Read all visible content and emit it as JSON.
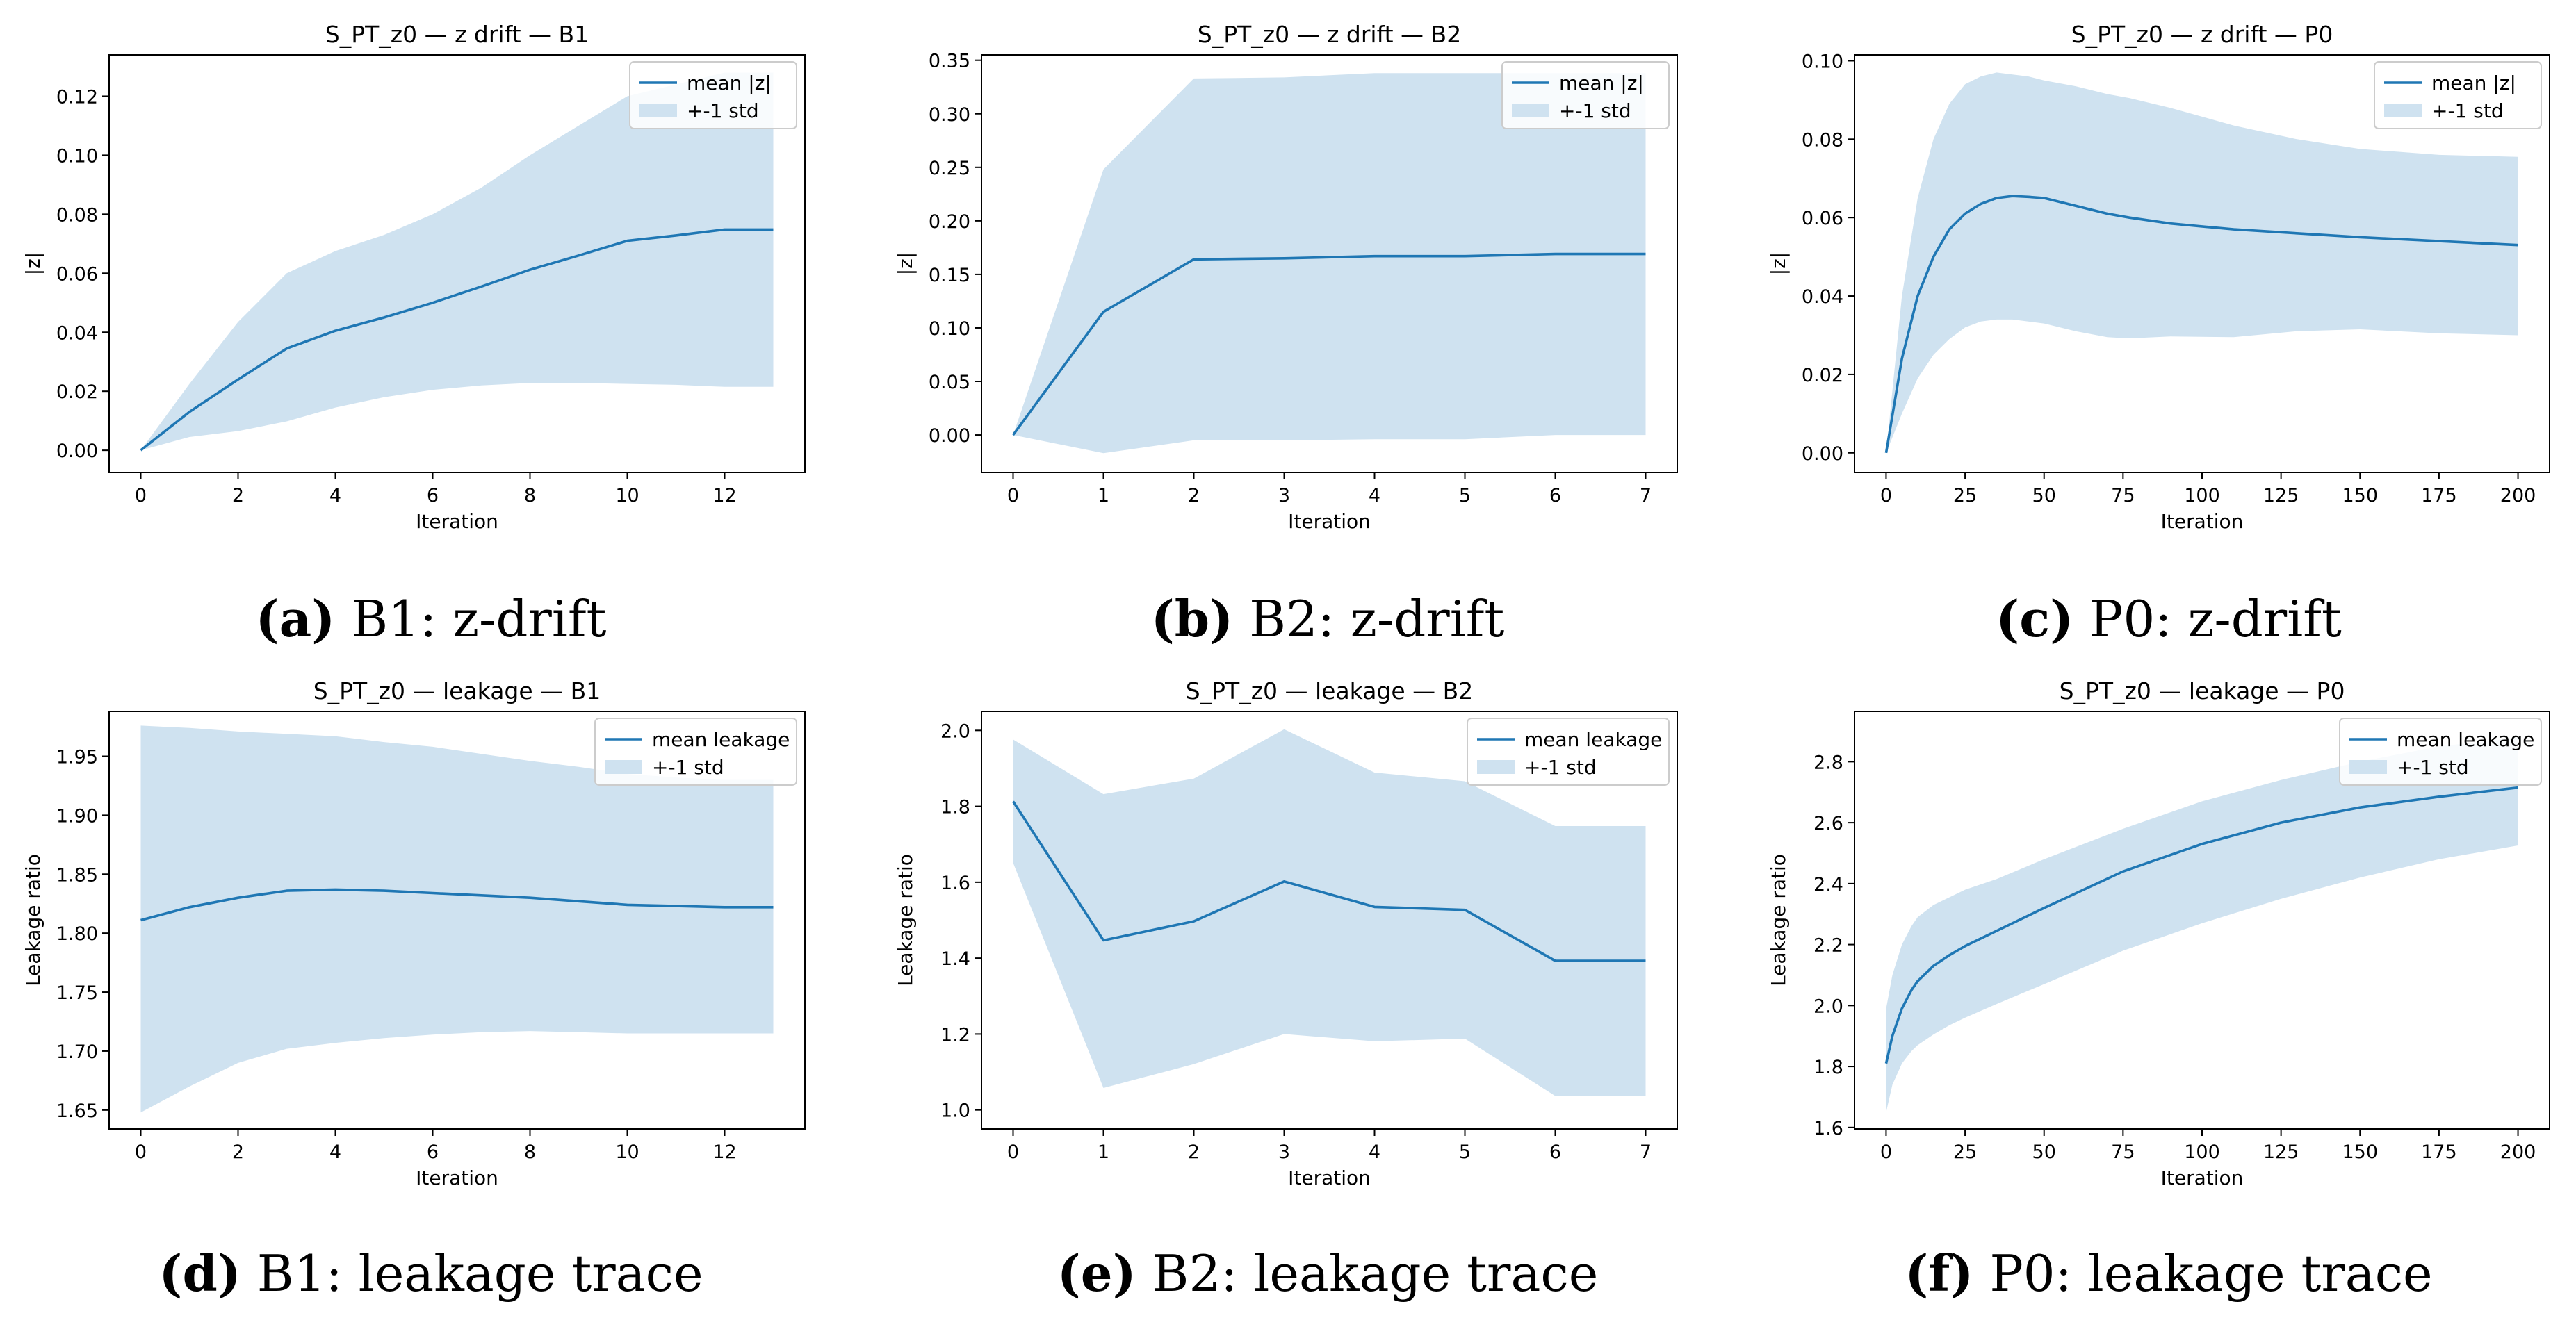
{
  "colors": {
    "line": "#1f77b4",
    "band": "#cfe2f0",
    "axis": "#000000"
  },
  "chart_data": [
    {
      "id": "a",
      "type": "line",
      "title": "S_PT_z0 — z drift — B1",
      "xlabel": "Iteration",
      "ylabel": "|z|",
      "xlim": [
        -0.65,
        13.65
      ],
      "ylim": [
        -0.0075,
        0.134
      ],
      "xticks": [
        0,
        2,
        4,
        6,
        8,
        10,
        12
      ],
      "yticks": [
        0.0,
        0.02,
        0.04,
        0.06,
        0.08,
        0.1,
        0.12
      ],
      "ytick_decimals": 2,
      "legend_position": "top-right",
      "series": [
        {
          "name": "mean |z|",
          "x": [
            0,
            1,
            2,
            3,
            4,
            5,
            6,
            7,
            8,
            9,
            10,
            11,
            12,
            13
          ],
          "y": [
            0.0,
            0.013,
            0.024,
            0.0345,
            0.0405,
            0.045,
            0.05,
            0.0555,
            0.0612,
            0.066,
            0.071,
            0.0728,
            0.0748,
            0.0748
          ]
        },
        {
          "name": "+-1 std",
          "x": [
            0,
            1,
            2,
            3,
            4,
            5,
            6,
            7,
            8,
            9,
            10,
            11,
            12,
            13
          ],
          "lower": [
            0.0,
            0.0045,
            0.0065,
            0.0098,
            0.0145,
            0.018,
            0.0205,
            0.022,
            0.0228,
            0.0228,
            0.0225,
            0.0222,
            0.0215,
            0.0215
          ],
          "upper": [
            0.0,
            0.0225,
            0.0435,
            0.06,
            0.0675,
            0.073,
            0.08,
            0.089,
            0.1,
            0.11,
            0.12,
            0.124,
            0.128,
            0.128
          ]
        }
      ]
    },
    {
      "id": "b",
      "type": "line",
      "title": "S_PT_z0 — z drift — B2",
      "xlabel": "Iteration",
      "ylabel": "|z|",
      "xlim": [
        -0.35,
        7.35
      ],
      "ylim": [
        -0.035,
        0.355
      ],
      "xticks": [
        0,
        1,
        2,
        3,
        4,
        5,
        6,
        7
      ],
      "yticks": [
        0.0,
        0.05,
        0.1,
        0.15,
        0.2,
        0.25,
        0.3,
        0.35
      ],
      "ytick_decimals": 2,
      "legend_position": "top-right",
      "series": [
        {
          "name": "mean |z|",
          "x": [
            0,
            1,
            2,
            3,
            4,
            5,
            6,
            7
          ],
          "y": [
            0.0,
            0.115,
            0.164,
            0.165,
            0.167,
            0.167,
            0.169,
            0.169
          ]
        },
        {
          "name": "+-1 std",
          "x": [
            0,
            1,
            2,
            3,
            4,
            5,
            6,
            7
          ],
          "lower": [
            0.0,
            -0.017,
            -0.005,
            -0.005,
            -0.004,
            -0.004,
            0.0,
            0.0
          ],
          "upper": [
            0.0,
            0.248,
            0.333,
            0.334,
            0.338,
            0.338,
            0.338,
            0.338
          ]
        }
      ]
    },
    {
      "id": "c",
      "type": "line",
      "title": "S_PT_z0 — z drift — P0",
      "xlabel": "Iteration",
      "ylabel": "|z|",
      "xlim": [
        -10,
        210
      ],
      "ylim": [
        -0.005,
        0.1015
      ],
      "xticks": [
        0,
        25,
        50,
        75,
        100,
        125,
        150,
        175,
        200
      ],
      "yticks": [
        0.0,
        0.02,
        0.04,
        0.06,
        0.08,
        0.1
      ],
      "ytick_decimals": 2,
      "legend_position": "top-right",
      "series": [
        {
          "name": "mean |z|",
          "x": [
            0,
            5,
            10,
            15,
            20,
            25,
            30,
            35,
            40,
            45,
            50,
            60,
            70,
            77,
            90,
            110,
            130,
            150,
            175,
            200
          ],
          "y": [
            0.0,
            0.024,
            0.04,
            0.05,
            0.057,
            0.061,
            0.0635,
            0.065,
            0.0655,
            0.0653,
            0.065,
            0.063,
            0.061,
            0.06,
            0.0585,
            0.057,
            0.056,
            0.055,
            0.054,
            0.053
          ]
        },
        {
          "name": "+-1 std",
          "x": [
            0,
            5,
            10,
            15,
            20,
            25,
            30,
            35,
            40,
            45,
            50,
            60,
            70,
            77,
            90,
            110,
            130,
            150,
            175,
            200
          ],
          "lower": [
            0.0,
            0.01,
            0.019,
            0.025,
            0.029,
            0.032,
            0.0335,
            0.034,
            0.034,
            0.0335,
            0.033,
            0.031,
            0.0295,
            0.0292,
            0.0297,
            0.0295,
            0.031,
            0.0315,
            0.0305,
            0.03
          ],
          "upper": [
            0.0,
            0.04,
            0.065,
            0.08,
            0.089,
            0.094,
            0.096,
            0.097,
            0.0965,
            0.096,
            0.095,
            0.0935,
            0.0915,
            0.0905,
            0.088,
            0.0835,
            0.08,
            0.0775,
            0.076,
            0.0755
          ]
        }
      ]
    },
    {
      "id": "d",
      "type": "line",
      "title": "S_PT_z0 — leakage — B1",
      "xlabel": "Iteration",
      "ylabel": "Leakage ratio",
      "xlim": [
        -0.65,
        13.65
      ],
      "ylim": [
        1.634,
        1.988
      ],
      "xticks": [
        0,
        2,
        4,
        6,
        8,
        10,
        12
      ],
      "yticks": [
        1.65,
        1.7,
        1.75,
        1.8,
        1.85,
        1.9,
        1.95
      ],
      "ytick_decimals": 2,
      "legend_position": "top-right",
      "series": [
        {
          "name": "mean leakage",
          "x": [
            0,
            1,
            2,
            3,
            4,
            5,
            6,
            7,
            8,
            9,
            10,
            11,
            12,
            13
          ],
          "y": [
            1.811,
            1.822,
            1.83,
            1.836,
            1.837,
            1.836,
            1.834,
            1.832,
            1.83,
            1.827,
            1.824,
            1.823,
            1.822,
            1.822
          ]
        },
        {
          "name": "+-1 std",
          "x": [
            0,
            1,
            2,
            3,
            4,
            5,
            6,
            7,
            8,
            9,
            10,
            11,
            12,
            13
          ],
          "lower": [
            1.648,
            1.67,
            1.69,
            1.702,
            1.707,
            1.711,
            1.714,
            1.716,
            1.717,
            1.716,
            1.715,
            1.715,
            1.715,
            1.715
          ],
          "upper": [
            1.976,
            1.974,
            1.971,
            1.969,
            1.967,
            1.962,
            1.958,
            1.952,
            1.946,
            1.941,
            1.935,
            1.932,
            1.93,
            1.93
          ]
        }
      ]
    },
    {
      "id": "e",
      "type": "line",
      "title": "S_PT_z0 — leakage — B2",
      "xlabel": "Iteration",
      "ylabel": "Leakage ratio",
      "xlim": [
        -0.35,
        7.35
      ],
      "ylim": [
        0.95,
        2.05
      ],
      "xticks": [
        0,
        1,
        2,
        3,
        4,
        5,
        6,
        7
      ],
      "yticks": [
        1.0,
        1.2,
        1.4,
        1.6,
        1.8,
        2.0
      ],
      "ytick_decimals": 1,
      "legend_position": "top-right",
      "series": [
        {
          "name": "mean leakage",
          "x": [
            0,
            1,
            2,
            3,
            4,
            5,
            6,
            7
          ],
          "y": [
            1.813,
            1.447,
            1.497,
            1.602,
            1.535,
            1.527,
            1.393,
            1.393
          ]
        },
        {
          "name": "+-1 std",
          "x": [
            0,
            1,
            2,
            3,
            4,
            5,
            6,
            7
          ],
          "lower": [
            1.651,
            1.058,
            1.121,
            1.2,
            1.181,
            1.188,
            1.037,
            1.037
          ],
          "upper": [
            1.976,
            1.832,
            1.873,
            2.003,
            1.889,
            1.866,
            1.748,
            1.748
          ]
        }
      ]
    },
    {
      "id": "f",
      "type": "line",
      "title": "S_PT_z0 — leakage — P0",
      "xlabel": "Iteration",
      "ylabel": "Leakage ratio",
      "xlim": [
        -10,
        210
      ],
      "ylim": [
        1.595,
        2.965
      ],
      "xticks": [
        0,
        25,
        50,
        75,
        100,
        125,
        150,
        175,
        200
      ],
      "yticks": [
        1.6,
        1.8,
        2.0,
        2.2,
        2.4,
        2.6,
        2.8
      ],
      "ytick_decimals": 1,
      "legend_position": "top-right",
      "series": [
        {
          "name": "mean leakage",
          "x": [
            0,
            2,
            5,
            8,
            10,
            15,
            20,
            25,
            35,
            50,
            75,
            100,
            125,
            150,
            175,
            200
          ],
          "y": [
            1.81,
            1.9,
            1.99,
            2.05,
            2.08,
            2.13,
            2.165,
            2.195,
            2.245,
            2.32,
            2.44,
            2.53,
            2.6,
            2.65,
            2.685,
            2.715
          ]
        },
        {
          "name": "+-1 std",
          "x": [
            0,
            2,
            5,
            8,
            10,
            15,
            20,
            25,
            35,
            50,
            75,
            100,
            125,
            150,
            175,
            200
          ],
          "lower": [
            1.65,
            1.74,
            1.81,
            1.85,
            1.87,
            1.905,
            1.935,
            1.96,
            2.005,
            2.07,
            2.18,
            2.27,
            2.35,
            2.42,
            2.48,
            2.525
          ],
          "upper": [
            1.99,
            2.1,
            2.2,
            2.26,
            2.29,
            2.33,
            2.355,
            2.38,
            2.415,
            2.48,
            2.58,
            2.67,
            2.74,
            2.8,
            2.85,
            2.88
          ]
        }
      ]
    }
  ],
  "captions": [
    {
      "label": "(a)",
      "text": "B1: z-drift"
    },
    {
      "label": "(b)",
      "text": "B2: z-drift"
    },
    {
      "label": "(c)",
      "text": "P0: z-drift"
    },
    {
      "label": "(d)",
      "text": "B1: leakage trace"
    },
    {
      "label": "(e)",
      "text": "B2: leakage trace"
    },
    {
      "label": "(f)",
      "text": "P0: leakage trace"
    }
  ]
}
